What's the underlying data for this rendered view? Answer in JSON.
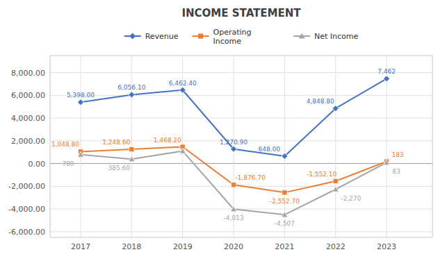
{
  "chart_data": {
    "type": "line",
    "title": "INCOME STATEMENT",
    "x": [
      2017,
      2018,
      2019,
      2020,
      2021,
      2022,
      2023
    ],
    "xlim": [
      2016.4,
      2023.9
    ],
    "xticks": [
      2017,
      2018,
      2019,
      2020,
      2021,
      2022,
      2023
    ],
    "ylim": [
      -6500,
      9500
    ],
    "yticks": [
      {
        "value": -6000,
        "label": "-6,000.00"
      },
      {
        "value": -4000,
        "label": "-4,000.00"
      },
      {
        "value": -2000,
        "label": "-2,000.00"
      },
      {
        "value": 0,
        "label": "0.00"
      },
      {
        "value": 2000,
        "label": "2,000.00"
      },
      {
        "value": 4000,
        "label": "4,000.00"
      },
      {
        "value": 6000,
        "label": "6,000.00"
      },
      {
        "value": 8000,
        "label": "8,000.00"
      }
    ],
    "grid": true,
    "legend": "top",
    "data_labels": true,
    "series": [
      {
        "name": "Revenue",
        "color": "#4472C4",
        "marker": "diamond",
        "values": [
          5398.0,
          6056.1,
          6462.4,
          1270.9,
          648.0,
          4848.8,
          7462.0
        ],
        "value_labels": [
          "5,398.00",
          "6,056.10",
          "6,462.40",
          "1,270.90",
          "648.00",
          "4,848.80",
          "7,462"
        ]
      },
      {
        "name": "Operating\nIncome",
        "color": "#ED7D31",
        "marker": "square",
        "values": [
          1048.8,
          1248.6,
          1468.2,
          -1876.7,
          -2552.7,
          -1552.1,
          183.0
        ],
        "value_labels": [
          "1,048.80",
          "1,248.60",
          "1,468.20",
          "-1,876.70",
          "-2,552.70",
          "-1,552.10",
          "183"
        ]
      },
      {
        "name": "Net Income",
        "color": "#A5A5A5",
        "marker": "triangle",
        "values": [
          780.0,
          385.6,
          1100.0,
          -4013.0,
          -4507.0,
          -2270.0,
          83.0
        ],
        "value_labels": [
          "780",
          "385.60",
          null,
          "-4,013",
          "-4,507",
          "-2,270",
          "83"
        ]
      }
    ]
  }
}
